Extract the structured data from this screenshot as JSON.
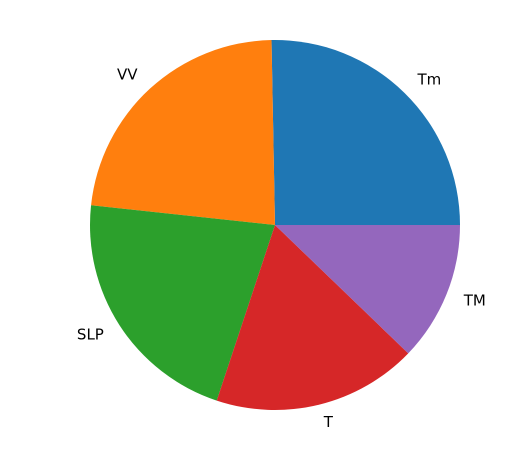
{
  "chart_data": {
    "type": "pie",
    "labels": [
      "Tm",
      "VV",
      "SLP",
      "T",
      "TM"
    ],
    "values": [
      25.3,
      23.0,
      21.6,
      17.9,
      12.2
    ],
    "colors": [
      "#1f77b4",
      "#ff7f0e",
      "#2ca02c",
      "#d62728",
      "#9467bd"
    ],
    "start_angle_deg": 0,
    "direction": "counterclockwise",
    "legend": "none",
    "title": ""
  }
}
